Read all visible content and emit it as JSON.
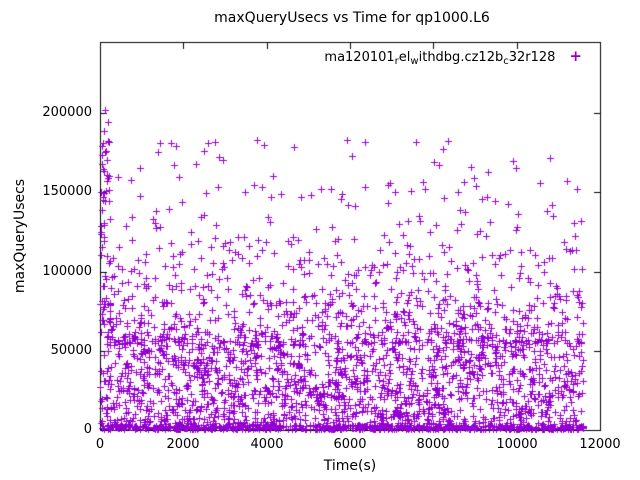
{
  "chart_data": {
    "type": "scatter",
    "title": "maxQueryUsecs vs Time for qp1000.L6",
    "xlabel": "Time(s)",
    "ylabel": "maxQueryUsecs",
    "x_range": [
      0,
      12000
    ],
    "y_range": [
      0,
      245000
    ],
    "x_ticks": [
      0,
      2000,
      4000,
      6000,
      8000,
      10000,
      12000
    ],
    "y_ticks": [
      0,
      50000,
      100000,
      150000,
      200000
    ],
    "grid": false,
    "legend_position": "top-right-inside",
    "marker": "plus",
    "legend_marker": "+",
    "point_color": "#9400d3",
    "series_name": "ma120101_rel_withdbg.cz12b_c32r128",
    "legend_segments": [
      {
        "t": "ma120101",
        "sub": false
      },
      {
        "t": "r",
        "sub": true
      },
      {
        "t": "el",
        "sub": false
      },
      {
        "t": "w",
        "sub": true
      },
      {
        "t": "ithdbg.cz12b",
        "sub": false
      },
      {
        "t": "c",
        "sub": true
      },
      {
        "t": "32r128",
        "sub": false
      }
    ],
    "highlight_points": [
      [
        120,
        202000
      ],
      [
        60,
        181000
      ],
      [
        150,
        176000
      ],
      [
        420,
        160000
      ],
      [
        950,
        148000
      ],
      [
        1450,
        181000
      ],
      [
        1900,
        160000
      ],
      [
        2300,
        168000
      ],
      [
        2600,
        181500
      ],
      [
        2750,
        182000
      ],
      [
        3700,
        155000
      ],
      [
        4100,
        147000
      ],
      [
        4650,
        178500
      ],
      [
        5300,
        152000
      ],
      [
        5800,
        149000
      ],
      [
        6900,
        155000
      ],
      [
        7800,
        152000
      ],
      [
        8600,
        150000
      ],
      [
        9300,
        163000
      ],
      [
        9900,
        170000
      ],
      [
        10800,
        172000
      ],
      [
        11200,
        157000
      ]
    ],
    "density_model": {
      "seed": 1337,
      "x_data_range": [
        0,
        11600
      ],
      "bands": [
        {
          "count": 1500,
          "x": [
            0,
            11600
          ],
          "y": [
            1500,
            55000
          ],
          "pow": 1.0
        },
        {
          "count": 600,
          "x": [
            0,
            11600
          ],
          "y": [
            400,
            3000
          ],
          "pow": 1.0
        },
        {
          "count": 500,
          "x": [
            0,
            11600
          ],
          "y": [
            55000,
            80000
          ],
          "pow": 1.6
        },
        {
          "count": 230,
          "x": [
            0,
            11600
          ],
          "y": [
            80000,
            110000
          ],
          "pow": 1.4
        },
        {
          "count": 110,
          "x": [
            0,
            11600
          ],
          "y": [
            110000,
            145000
          ],
          "pow": 1.2
        },
        {
          "count": 45,
          "x": [
            100,
            11600
          ],
          "y": [
            145000,
            185000
          ],
          "pow": 1.1
        },
        {
          "count": 45,
          "x": [
            0,
            250
          ],
          "y": [
            60000,
            205000
          ],
          "pow": 1.0
        }
      ]
    }
  }
}
